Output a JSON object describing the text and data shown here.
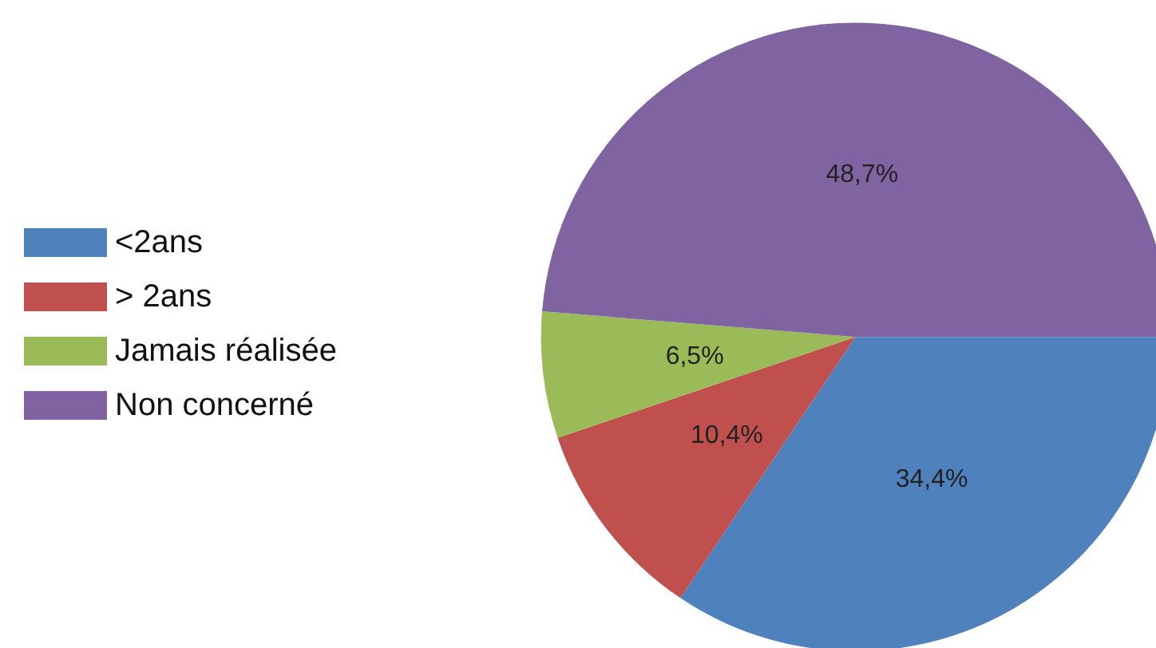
{
  "chart_data": {
    "type": "pie",
    "categories": [
      "<2ans",
      "> 2ans",
      "Jamais réalisée",
      "Non concerné"
    ],
    "values": [
      34.4,
      10.4,
      6.5,
      48.7
    ],
    "value_labels": [
      "34,4%",
      "10,4%",
      "6,5%",
      "48,7%"
    ],
    "colors": [
      "#4f81bd",
      "#c0504d",
      "#9bbb59",
      "#8064a2"
    ],
    "legend": "left"
  }
}
